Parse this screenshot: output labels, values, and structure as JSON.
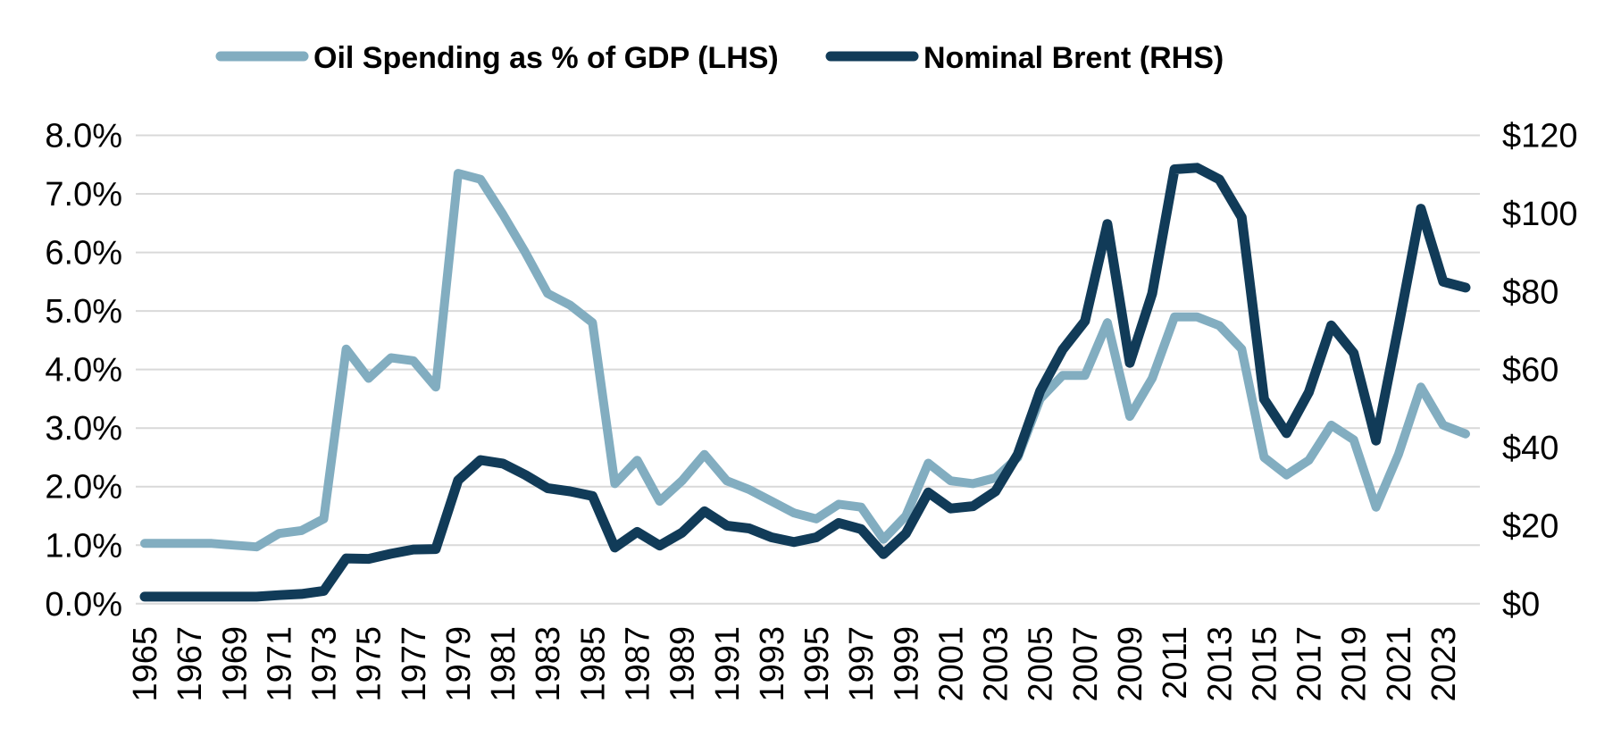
{
  "chart_data": {
    "type": "line",
    "title": "",
    "background": "#FFFFFF",
    "gridline_color": "#D9D9D9",
    "grid": "horizontal",
    "legend_position": "top",
    "years": [
      1965,
      1966,
      1967,
      1968,
      1969,
      1970,
      1971,
      1972,
      1973,
      1974,
      1975,
      1976,
      1977,
      1978,
      1979,
      1980,
      1981,
      1982,
      1983,
      1984,
      1985,
      1986,
      1987,
      1988,
      1989,
      1990,
      1991,
      1992,
      1993,
      1994,
      1995,
      1996,
      1997,
      1998,
      1999,
      2000,
      2001,
      2002,
      2003,
      2004,
      2005,
      2006,
      2007,
      2008,
      2009,
      2010,
      2011,
      2012,
      2013,
      2014,
      2015,
      2016,
      2017,
      2018,
      2019,
      2020,
      2021,
      2022,
      2023,
      2024
    ],
    "x_tick_labels": [
      "1965",
      "1967",
      "1969",
      "1971",
      "1973",
      "1975",
      "1977",
      "1979",
      "1981",
      "1983",
      "1985",
      "1987",
      "1989",
      "1991",
      "1993",
      "1995",
      "1997",
      "1999",
      "2001",
      "2003",
      "2005",
      "2007",
      "2009",
      "2011",
      "2013",
      "2015",
      "2017",
      "2019",
      "2021",
      "2023"
    ],
    "left_axis": {
      "min": 0,
      "max": 8,
      "tick_step": 1,
      "tick_labels": [
        "0.0%",
        "1.0%",
        "2.0%",
        "3.0%",
        "4.0%",
        "5.0%",
        "6.0%",
        "7.0%",
        "8.0%"
      ]
    },
    "right_axis": {
      "min": 0,
      "max": 120,
      "tick_step": 20,
      "tick_labels": [
        "$0",
        "$20",
        "$40",
        "$60",
        "$80",
        "$100",
        "$120"
      ]
    },
    "series": [
      {
        "name": "Oil Spending as % of GDP (LHS)",
        "axis": "left",
        "color": "#82ADC0",
        "unit": "%",
        "values": [
          1.03,
          1.03,
          1.03,
          1.03,
          1.0,
          0.97,
          1.2,
          1.25,
          1.45,
          4.35,
          3.85,
          4.2,
          4.15,
          3.7,
          7.35,
          7.25,
          6.65,
          6.0,
          5.3,
          5.1,
          4.8,
          2.05,
          2.45,
          1.75,
          2.1,
          2.55,
          2.1,
          1.95,
          1.75,
          1.55,
          1.45,
          1.7,
          1.65,
          1.1,
          1.5,
          2.4,
          2.1,
          2.05,
          2.15,
          2.5,
          3.5,
          3.9,
          3.9,
          4.8,
          3.2,
          3.85,
          4.9,
          4.9,
          4.75,
          4.35,
          2.5,
          2.2,
          2.45,
          3.05,
          2.8,
          1.65,
          2.55,
          3.7,
          3.05,
          2.9
        ]
      },
      {
        "name": "Nominal Brent (RHS)",
        "axis": "right",
        "color": "#113B58",
        "unit": "$",
        "values": [
          1.8,
          1.8,
          1.8,
          1.8,
          1.8,
          1.8,
          2.2,
          2.5,
          3.3,
          11.6,
          11.5,
          12.8,
          13.9,
          14.0,
          31.6,
          36.8,
          35.9,
          33.0,
          29.6,
          28.8,
          27.6,
          14.4,
          18.4,
          14.9,
          18.2,
          23.7,
          20.0,
          19.3,
          17.0,
          15.8,
          17.0,
          20.7,
          19.1,
          12.7,
          18.0,
          28.5,
          24.4,
          25.0,
          28.8,
          38.3,
          54.5,
          65.1,
          72.4,
          97.3,
          61.7,
          79.5,
          111.3,
          111.7,
          108.7,
          99.0,
          52.4,
          43.7,
          54.2,
          71.3,
          64.2,
          41.8,
          70.9,
          101.2,
          82.5,
          81.0
        ]
      }
    ]
  }
}
